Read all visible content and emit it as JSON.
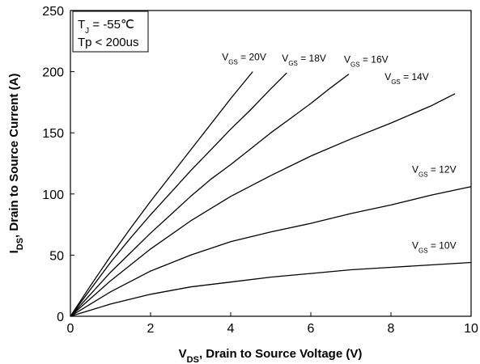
{
  "chart_data": {
    "type": "line",
    "xlabel": {
      "main": "V",
      "sub": "DS",
      "rest": ", Drain to Source Voltage (V)"
    },
    "ylabel": {
      "main": "I",
      "sub": "DS",
      "rest": ", Drain to Source Current (A)"
    },
    "xlim": [
      0,
      10
    ],
    "ylim": [
      0,
      250
    ],
    "x_ticks": [
      0,
      2,
      4,
      6,
      8,
      10
    ],
    "y_ticks": [
      0,
      50,
      100,
      150,
      200,
      250
    ],
    "grid": false,
    "conditions": {
      "line1": {
        "main": "T",
        "sub": "J",
        "rest": " = -55℃"
      },
      "line2": "Tp < 200us"
    },
    "series": [
      {
        "name": "V GS = 20V",
        "label_main": "V",
        "label_sub": "GS",
        "label_rest": " = 20V",
        "x": [
          0,
          0.5,
          1,
          1.5,
          2,
          2.5,
          3,
          3.5,
          4,
          4.55
        ],
        "y": [
          0,
          25,
          49,
          72,
          94,
          115,
          136,
          157,
          178,
          200
        ]
      },
      {
        "name": "V GS = 18V",
        "label_main": "V",
        "label_sub": "GS",
        "label_rest": " = 18V",
        "x": [
          0,
          0.5,
          1,
          1.5,
          2,
          2.5,
          3,
          3.5,
          4,
          4.5,
          5,
          5.4
        ],
        "y": [
          0,
          22,
          44,
          64,
          83,
          101,
          119,
          136,
          153,
          169,
          186,
          199
        ]
      },
      {
        "name": "V GS = 16V",
        "label_main": "V",
        "label_sub": "GS",
        "label_rest": " = 16V",
        "x": [
          0,
          0.5,
          1,
          1.5,
          2,
          2.5,
          3,
          3.5,
          4,
          4.5,
          5,
          5.5,
          6,
          6.5,
          6.95
        ],
        "y": [
          0,
          18,
          36,
          52,
          68,
          83,
          98,
          112,
          124,
          137,
          150,
          162,
          174,
          187,
          198
        ]
      },
      {
        "name": "V GS = 14V",
        "label_main": "V",
        "label_sub": "GS",
        "label_rest": " = 14V",
        "x": [
          0,
          1,
          2,
          3,
          4,
          5,
          6,
          7,
          8,
          9,
          9.6
        ],
        "y": [
          0,
          29,
          55,
          78,
          98,
          115,
          131,
          145,
          158,
          172,
          182
        ]
      },
      {
        "name": "V GS = 12V",
        "label_main": "V",
        "label_sub": "GS",
        "label_rest": " = 12V",
        "x": [
          0,
          1,
          2,
          3,
          4,
          5,
          6,
          7,
          8,
          9,
          10
        ],
        "y": [
          0,
          20,
          37,
          50,
          61,
          69,
          76,
          84,
          91,
          99,
          106
        ]
      },
      {
        "name": "V GS = 10V",
        "label_main": "V",
        "label_sub": "GS",
        "label_rest": " = 10V",
        "x": [
          0,
          1,
          2,
          3,
          4,
          5,
          6,
          7,
          8,
          9,
          10
        ],
        "y": [
          0,
          10,
          18,
          24,
          28,
          32,
          35,
          38,
          40,
          42,
          44
        ]
      }
    ]
  }
}
